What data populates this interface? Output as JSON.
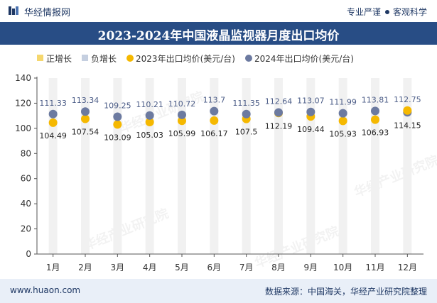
{
  "brand": {
    "name": "华经情报网",
    "tags": [
      "专业严谨",
      "客观科学"
    ],
    "watermark": "华经产业研究院",
    "website": "www.huaon.com"
  },
  "source_note": "数据来源：中国海关，华经产业研究院整理",
  "colors": {
    "brand_navy": "#1f3864",
    "title_bar": "#284d85",
    "increase": "#f5d76e",
    "decrease": "#c5cfe0",
    "series_2023": "#f5b800",
    "series_2024": "#6c7aa0",
    "bar_track": "#f1f1f1"
  },
  "chart_data": {
    "type": "line",
    "title": "2023-2024年中国液晶监视器月度出口均价",
    "xlabel": "",
    "ylabel": "",
    "ylim": [
      0,
      140
    ],
    "yticks": [
      0,
      20,
      40,
      60,
      80,
      100,
      120,
      140
    ],
    "grid": false,
    "legend_position": "top",
    "categories": [
      "1月",
      "2月",
      "3月",
      "4月",
      "5月",
      "6月",
      "7月",
      "8月",
      "9月",
      "10月",
      "11月",
      "12月"
    ],
    "legend": [
      {
        "name": "正增长",
        "marker": "square",
        "color": "#f5d76e"
      },
      {
        "name": "负增长",
        "marker": "square",
        "color": "#c5cfe0"
      },
      {
        "name": "2023年出口均价(美元/台)",
        "marker": "circle",
        "color": "#f5b800"
      },
      {
        "name": "2024年出口均价(美元/台)",
        "marker": "circle",
        "color": "#6c7aa0"
      }
    ],
    "series": [
      {
        "name": "2023年出口均价(美元/台)",
        "color": "#f5b800",
        "values": [
          104.49,
          107.54,
          103.09,
          105.03,
          105.99,
          106.17,
          107.5,
          112.19,
          109.44,
          105.93,
          106.93,
          114.15
        ]
      },
      {
        "name": "2024年出口均价(美元/台)",
        "color": "#6c7aa0",
        "values": [
          111.33,
          113.34,
          109.25,
          110.21,
          110.72,
          113.7,
          111.35,
          112.64,
          113.07,
          111.99,
          113.81,
          112.75
        ]
      }
    ],
    "value_labels_2023": [
      "104.49",
      "107.54",
      "103.09",
      "105.03",
      "105.99",
      "106.17",
      "107.5",
      "112.19",
      "109.44",
      "105.93",
      "106.93",
      "114.15"
    ],
    "value_labels_2024": [
      "111.33",
      "113.34",
      "109.25",
      "110.21",
      "110.72",
      "113.7",
      "111.35",
      "112.64",
      "113.07",
      "111.99",
      "113.81",
      "112.75"
    ]
  }
}
